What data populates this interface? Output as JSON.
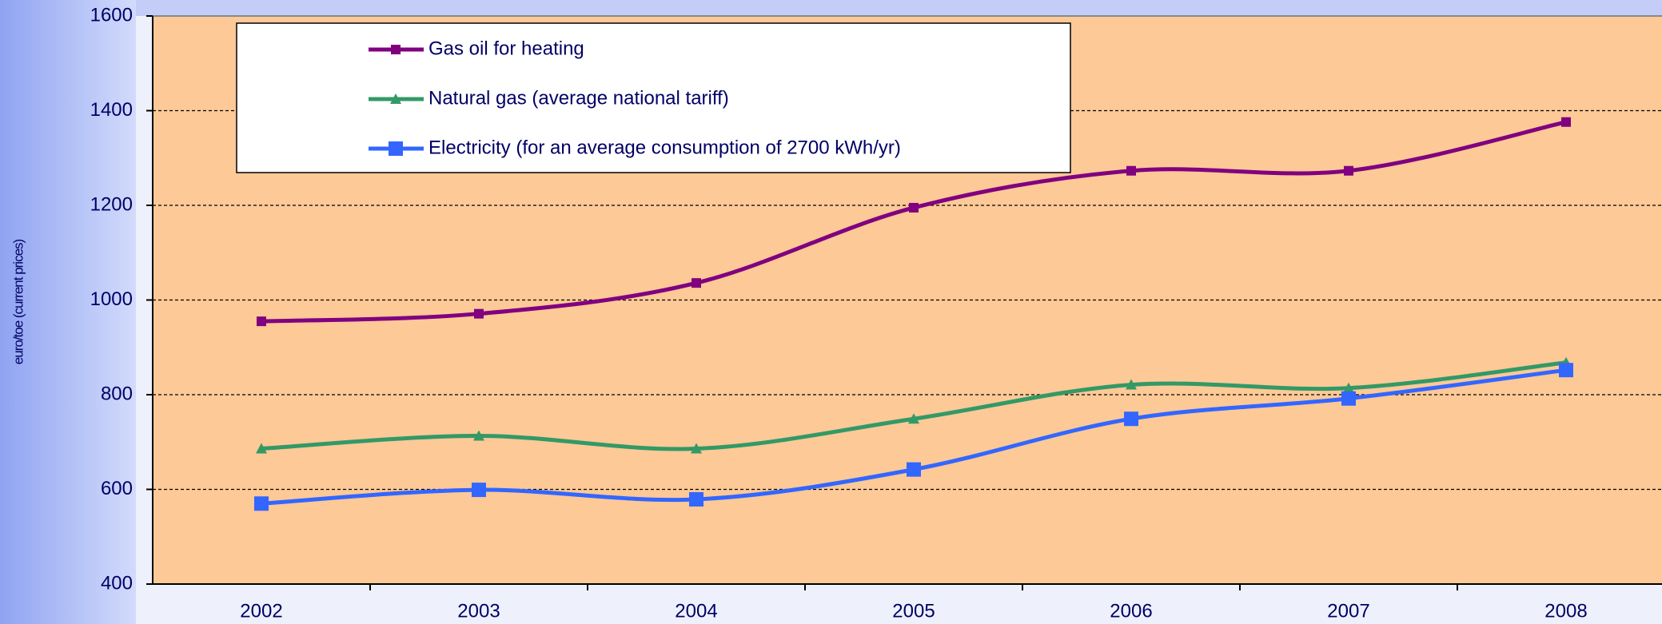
{
  "chart_data": {
    "type": "line",
    "y_label": "euro/toe (current prices)",
    "categories": [
      "2002",
      "2003",
      "2004",
      "2005",
      "2006",
      "2007",
      "2008"
    ],
    "series": [
      {
        "name": "Gas oil for heating",
        "color": "#800080",
        "marker": "square",
        "values": [
          955,
          971,
          1036,
          1195,
          1273,
          1273,
          1376
        ]
      },
      {
        "name": "Natural gas (average national tariff)",
        "color": "#339966",
        "marker": "triangle",
        "values": [
          686,
          713,
          686,
          749,
          821,
          814,
          868
        ]
      },
      {
        "name": "Electricity (for an average consumption of 2700 kWh/yr)",
        "color": "#3366ff",
        "marker": "big-square",
        "values": [
          570,
          599,
          579,
          642,
          749,
          792,
          852
        ]
      }
    ],
    "ylim": [
      400,
      1600
    ],
    "yticks": [
      400,
      600,
      800,
      1000,
      1200,
      1400,
      1600
    ],
    "grid": true,
    "smooth": true
  }
}
